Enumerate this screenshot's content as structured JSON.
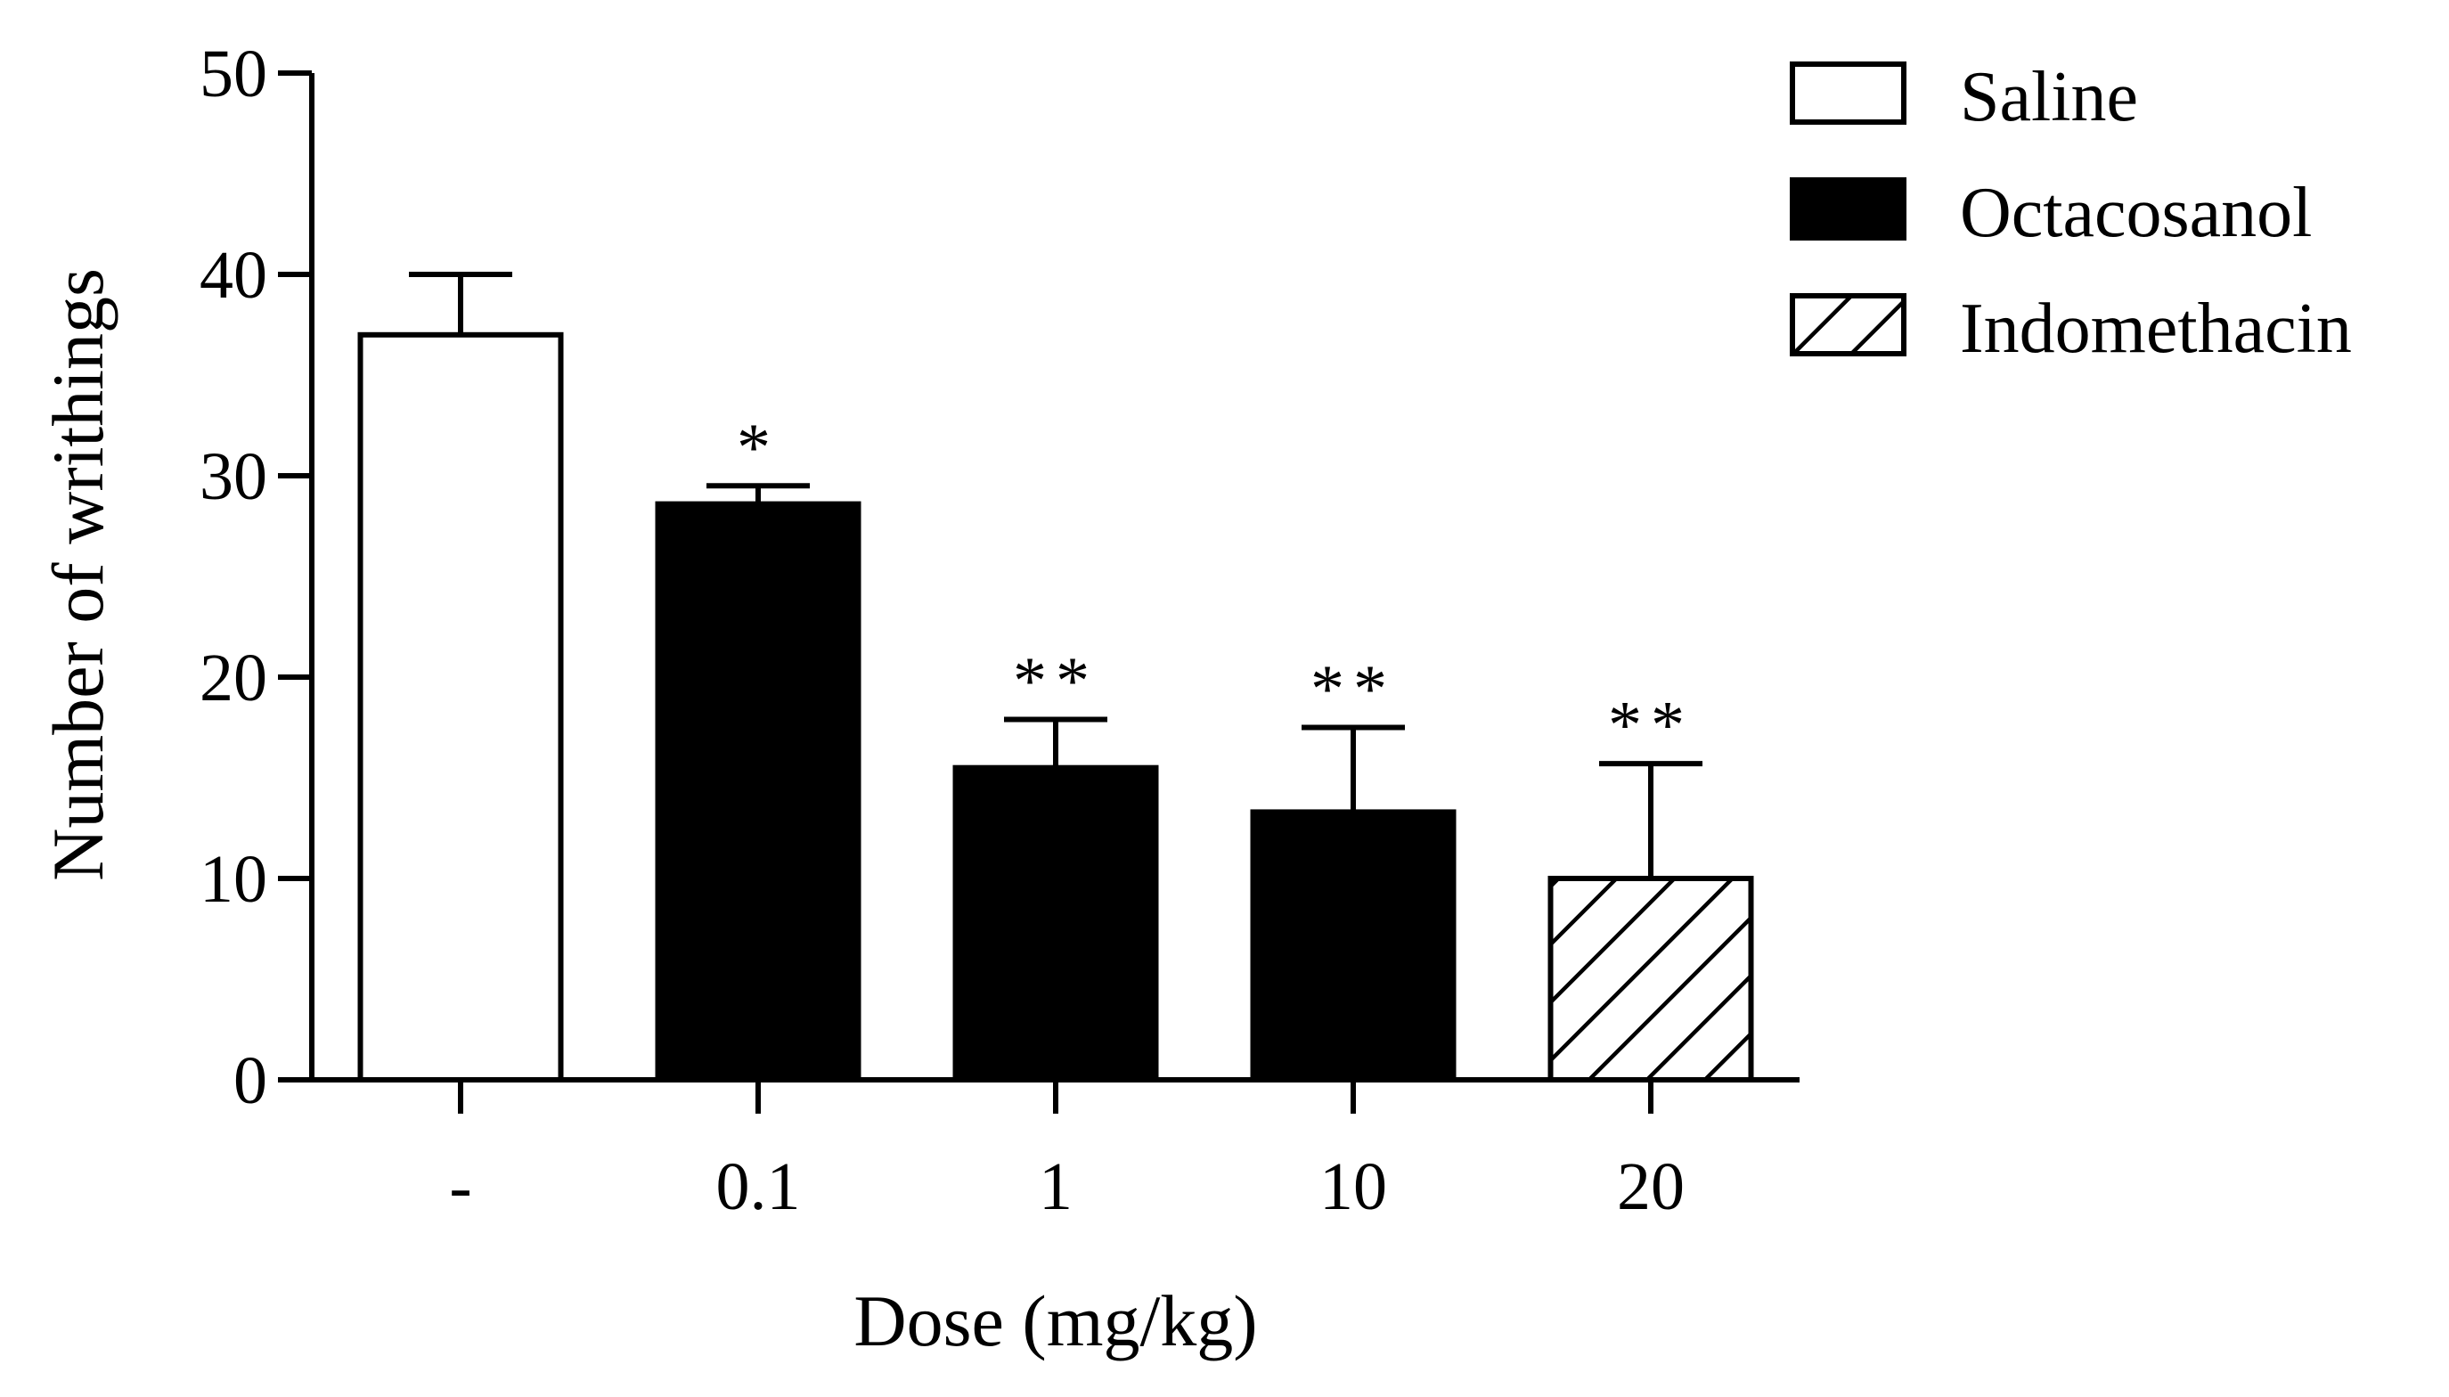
{
  "chart_data": {
    "type": "bar",
    "title": "",
    "xlabel": "Dose (mg/kg)",
    "ylabel": "Number of  writhings",
    "ylim": [
      0,
      50
    ],
    "yticks": [
      "0",
      "10",
      "20",
      "30",
      "40",
      "50"
    ],
    "ytick_values": [
      0,
      10,
      20,
      30,
      40,
      50
    ],
    "categories": [
      "-",
      "0.1",
      "1",
      "10",
      "20"
    ],
    "bars": [
      {
        "category": "-",
        "group": "Saline",
        "value": 37,
        "error": 3,
        "significance": ""
      },
      {
        "category": "0.1",
        "group": "Octacosanol",
        "value": 28.6,
        "error": 0.9,
        "significance": "*"
      },
      {
        "category": "1",
        "group": "Octacosanol",
        "value": 15.5,
        "error": 2.4,
        "significance": "**"
      },
      {
        "category": "10",
        "group": "Octacosanol",
        "value": 13.3,
        "error": 4.2,
        "significance": "**"
      },
      {
        "category": "20",
        "group": "Indomethacin",
        "value": 10,
        "error": 5.7,
        "significance": "**"
      }
    ],
    "legend": {
      "placement": "top-right",
      "entries": [
        {
          "label": "Saline",
          "fill": "white"
        },
        {
          "label": "Octacosanol",
          "fill": "black"
        },
        {
          "label": "Indomethacin",
          "fill": "hatched"
        }
      ]
    },
    "colors": {
      "stroke": "#000000",
      "saline_fill": "#ffffff",
      "octacosanol_fill": "#000000",
      "indomethacin_fill": "#ffffff"
    }
  }
}
